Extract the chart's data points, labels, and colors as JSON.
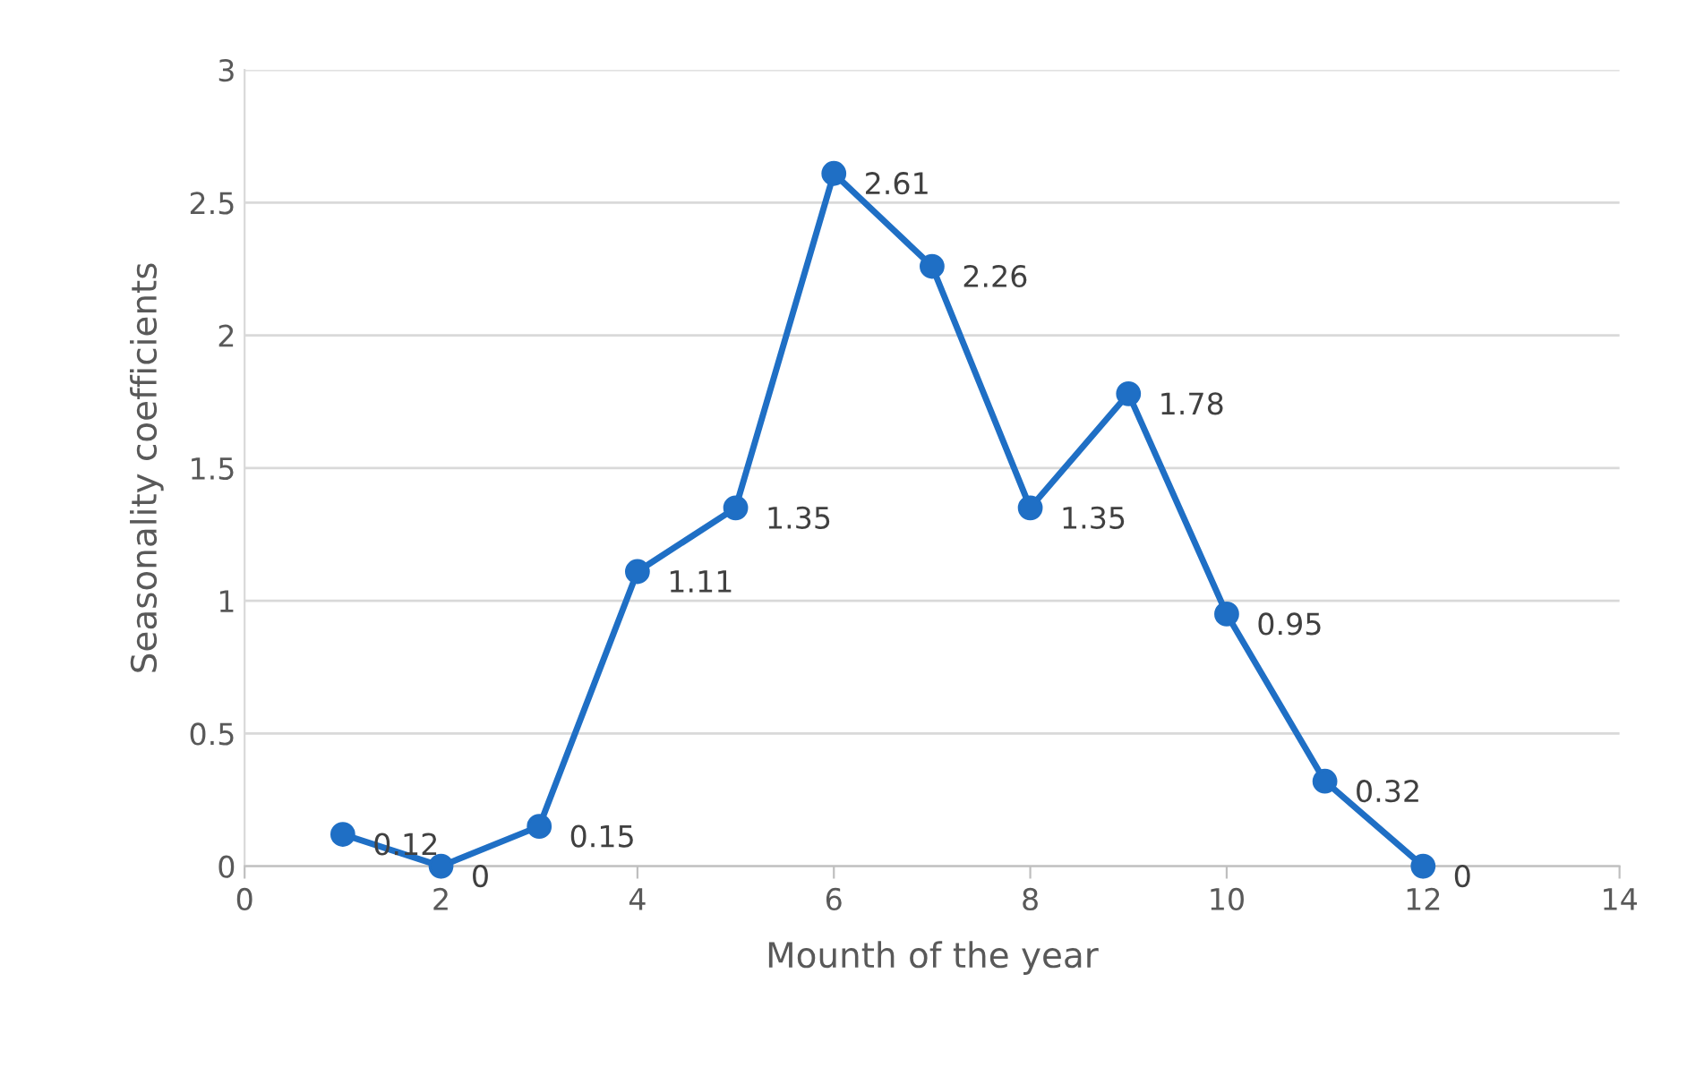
{
  "chart_data": {
    "type": "line",
    "xlabel": "Mounth of the year",
    "ylabel": "Seasonality coefficients",
    "x": [
      1,
      2,
      3,
      4,
      5,
      6,
      7,
      8,
      9,
      10,
      11,
      12
    ],
    "series": [
      {
        "color": "#1f6fc5",
        "values": [
          0.12,
          0,
          0.15,
          1.11,
          1.35,
          2.61,
          2.26,
          1.35,
          1.78,
          0.95,
          0.32,
          0
        ]
      }
    ],
    "xlim": [
      0,
      14
    ],
    "xticks": [
      0,
      2,
      4,
      6,
      8,
      10,
      12,
      14
    ],
    "ylim": [
      0,
      3
    ],
    "yticks": [
      0,
      0.5,
      1,
      1.5,
      2,
      2.5,
      3
    ],
    "grid": "y",
    "marker": "circle",
    "line_style": "solid",
    "data_labels": true
  }
}
